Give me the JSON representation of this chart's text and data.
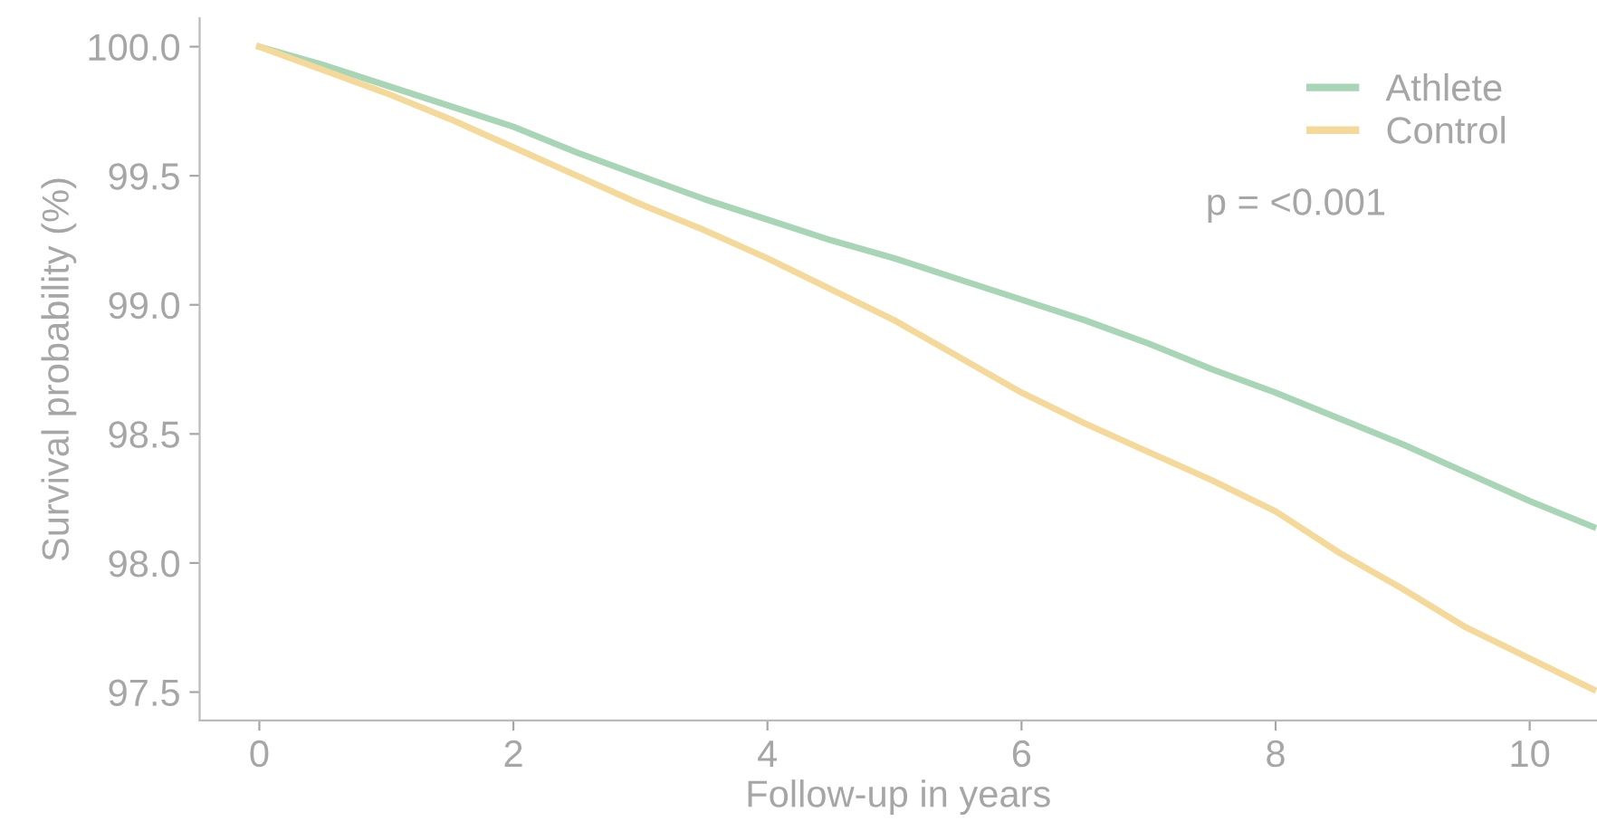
{
  "chart_data": {
    "type": "line",
    "xlabel": "Follow-up in years",
    "ylabel": "Survival probability (%)",
    "x": [
      0,
      0.5,
      1,
      1.5,
      2,
      2.5,
      3,
      3.5,
      4,
      4.5,
      5,
      5.5,
      6,
      6.5,
      7,
      7.5,
      8,
      8.5,
      9,
      9.5,
      10,
      10.5
    ],
    "series": [
      {
        "name": "Athlete",
        "color": "#a8d5b5",
        "values": [
          100,
          99.93,
          99.85,
          99.77,
          99.69,
          99.59,
          99.5,
          99.41,
          99.33,
          99.25,
          99.18,
          99.1,
          99.02,
          98.94,
          98.85,
          98.75,
          98.66,
          98.56,
          98.46,
          98.35,
          98.24,
          98.14
        ]
      },
      {
        "name": "Control",
        "color": "#f5d99a",
        "values": [
          100,
          99.91,
          99.82,
          99.72,
          99.61,
          99.5,
          99.39,
          99.29,
          99.18,
          99.06,
          98.94,
          98.8,
          98.66,
          98.54,
          98.43,
          98.32,
          98.2,
          98.04,
          97.9,
          97.75,
          97.63,
          97.51
        ]
      }
    ],
    "xlim": [
      -0.47,
      10.53
    ],
    "ylim": [
      97.39,
      100.11
    ],
    "xticks": [
      0,
      2,
      4,
      6,
      8,
      10
    ],
    "yticks": [
      {
        "value": 97.5,
        "label": "97.5"
      },
      {
        "value": 98.0,
        "label": "98.0"
      },
      {
        "value": 98.5,
        "label": "98.5"
      },
      {
        "value": 99.0,
        "label": "99.0"
      },
      {
        "value": 99.5,
        "label": "99.5"
      },
      {
        "value": 100.0,
        "label": "100.0"
      }
    ],
    "annotations": [
      "p = <0.001"
    ],
    "legend": "top right",
    "grid": false,
    "marker": "none",
    "line_style": "solid"
  }
}
